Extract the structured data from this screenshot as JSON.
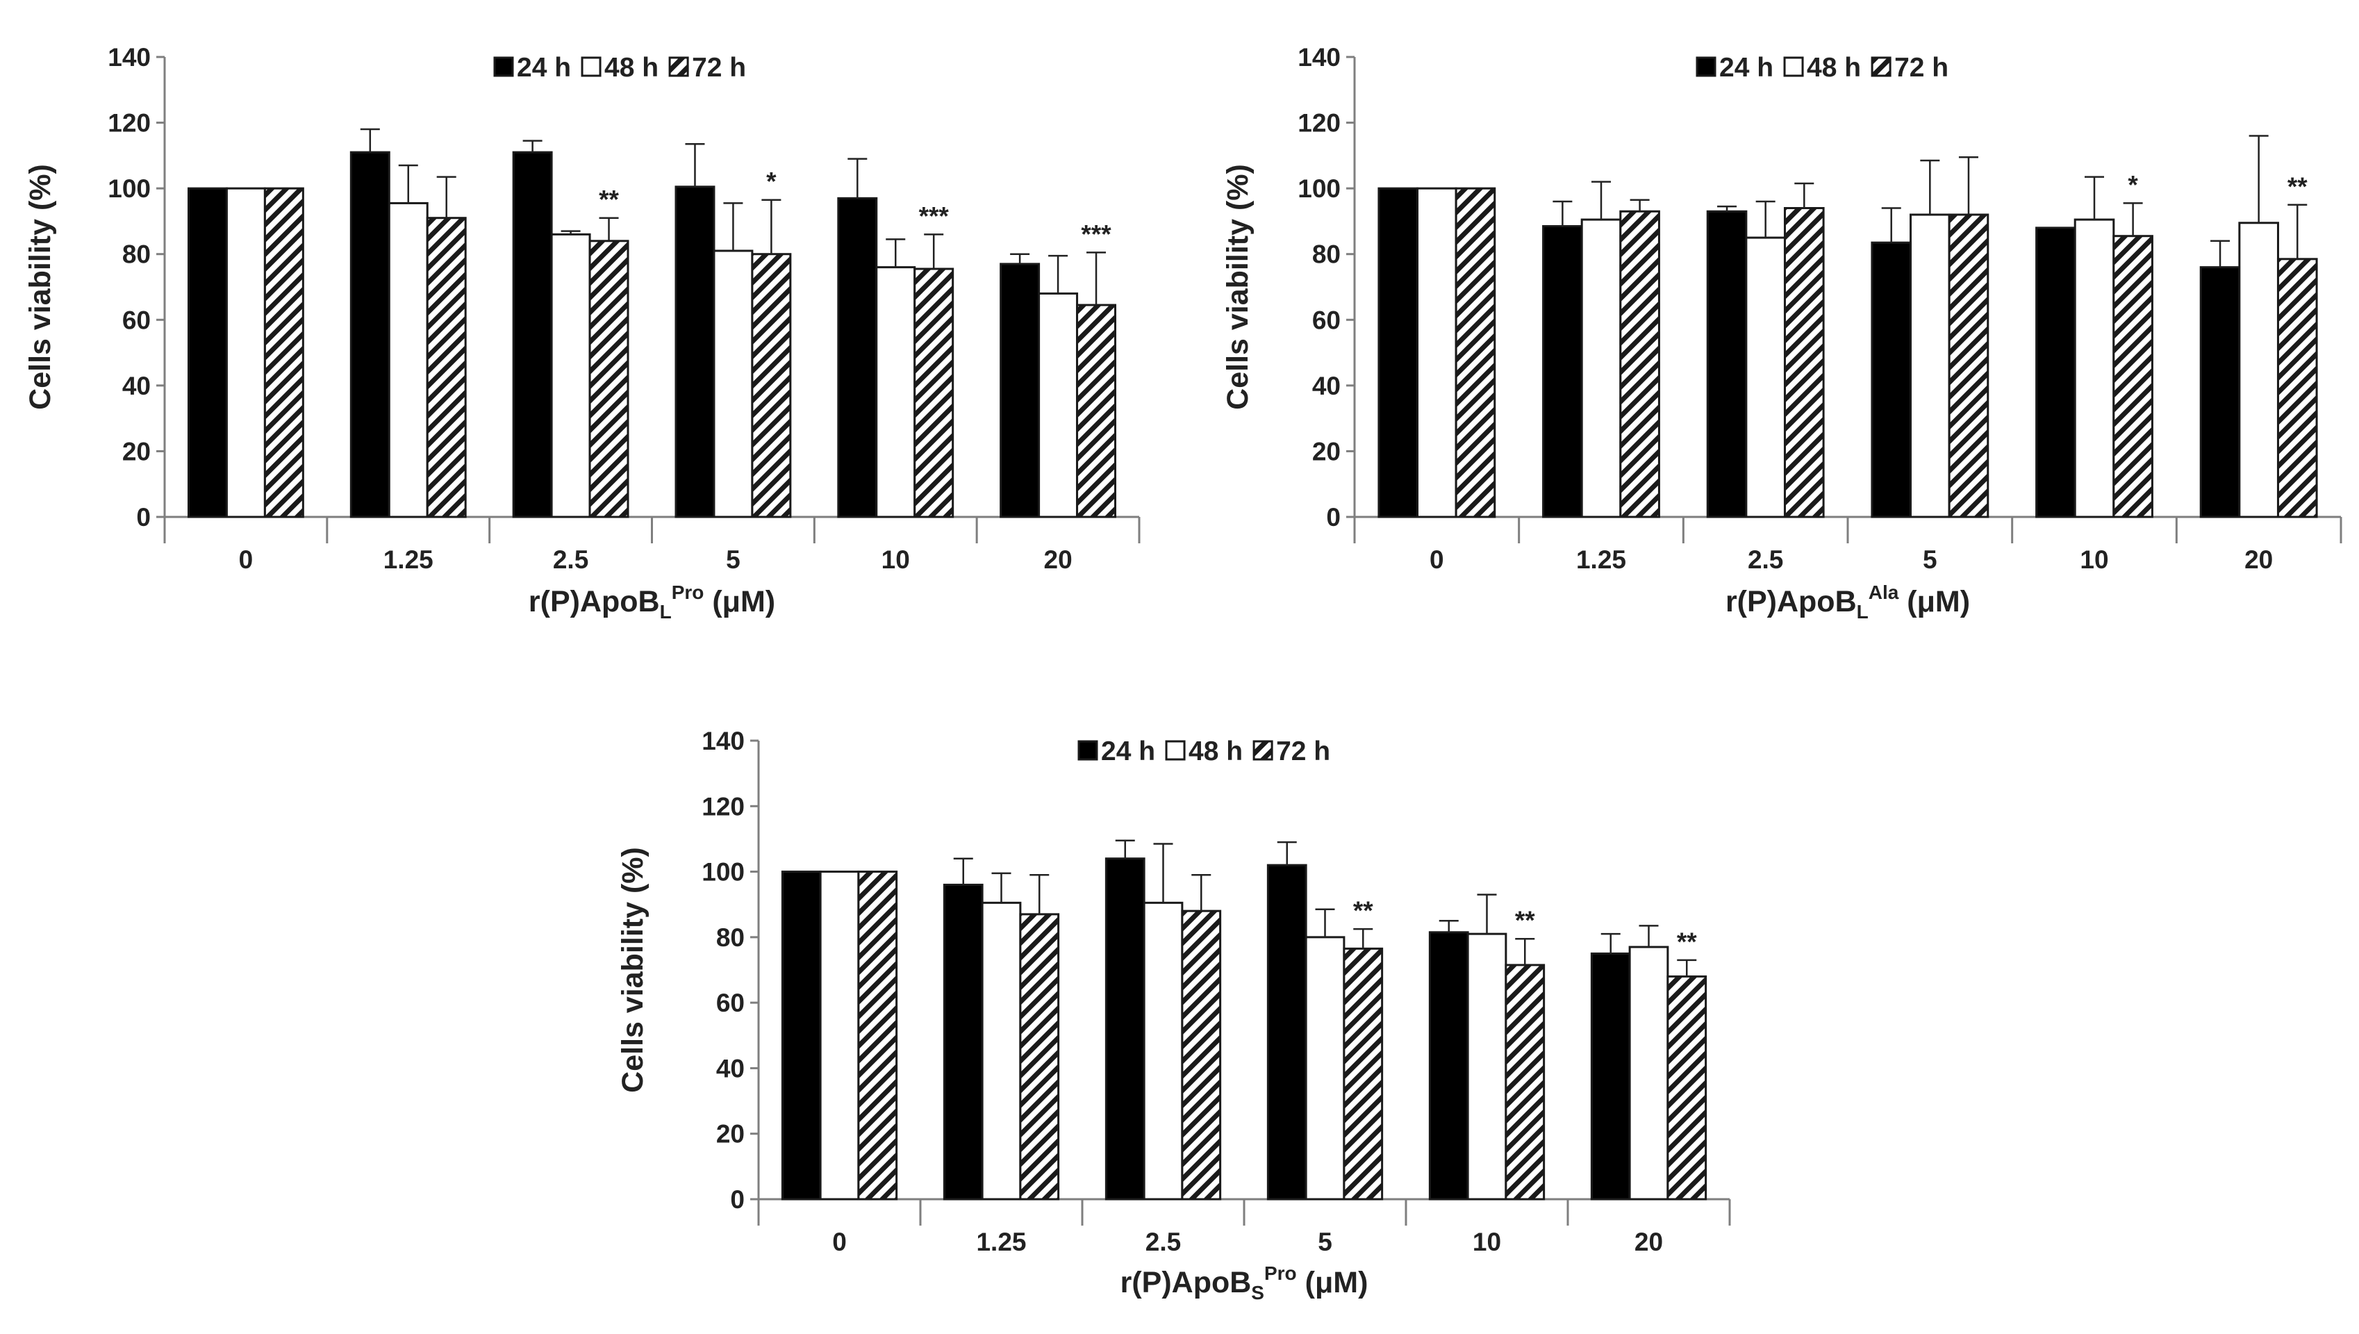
{
  "chart_data": [
    {
      "type": "bar",
      "ylabel": "Cells viability (%)",
      "xlabel": {
        "main": "r(P)ApoB",
        "sub": "L",
        "sup": "Pro",
        "unit": "(μM)"
      },
      "ylim": [
        0,
        140
      ],
      "yticks": [
        0,
        20,
        40,
        60,
        80,
        100,
        120,
        140
      ],
      "categories": [
        "0",
        "1.25",
        "2.5",
        "5",
        "10",
        "20"
      ],
      "legend": "top-center",
      "series": [
        {
          "name": "24 h",
          "style": "solid",
          "values": [
            100,
            111,
            111,
            100.5,
            97,
            77
          ],
          "errors": [
            0,
            7,
            3.5,
            13,
            12,
            3
          ]
        },
        {
          "name": "48 h",
          "style": "white",
          "values": [
            100,
            95.5,
            86,
            81,
            76,
            68
          ],
          "errors": [
            0,
            11.5,
            1,
            14.5,
            8.5,
            11.5
          ]
        },
        {
          "name": "72 h",
          "style": "hatched",
          "values": [
            100,
            91,
            84,
            80,
            75.5,
            64.5
          ],
          "errors": [
            0,
            12.5,
            7,
            16.5,
            10.5,
            16
          ]
        }
      ],
      "annotations": [
        "",
        "",
        "**",
        "*",
        "***",
        "***"
      ]
    },
    {
      "type": "bar",
      "ylabel": "Cells viability (%)",
      "xlabel": {
        "main": "r(P)ApoB",
        "sub": "L",
        "sup": "Ala",
        "unit": "(μM)"
      },
      "ylim": [
        0,
        140
      ],
      "yticks": [
        0,
        20,
        40,
        60,
        80,
        100,
        120,
        140
      ],
      "categories": [
        "0",
        "1.25",
        "2.5",
        "5",
        "10",
        "20"
      ],
      "legend": "top-center",
      "series": [
        {
          "name": "24 h",
          "style": "solid",
          "values": [
            100,
            88.5,
            93,
            83.5,
            88,
            76
          ],
          "errors": [
            0,
            7.5,
            1.5,
            10.5,
            0,
            8
          ]
        },
        {
          "name": "48 h",
          "style": "white",
          "values": [
            100,
            90.5,
            85,
            92,
            90.5,
            89.5
          ],
          "errors": [
            0,
            11.5,
            11,
            16.5,
            13,
            26.5
          ]
        },
        {
          "name": "72 h",
          "style": "hatched",
          "values": [
            100,
            93,
            94,
            92,
            85.5,
            78.5
          ],
          "errors": [
            0,
            3.5,
            7.5,
            17.5,
            10,
            16.5
          ]
        }
      ],
      "annotations": [
        "",
        "",
        "",
        "",
        "*",
        "**"
      ]
    },
    {
      "type": "bar",
      "ylabel": "Cells viability (%)",
      "xlabel": {
        "main": "r(P)ApoB",
        "sub": "S",
        "sup": "Pro",
        "unit": "(μM)"
      },
      "ylim": [
        0,
        140
      ],
      "yticks": [
        0,
        20,
        40,
        60,
        80,
        100,
        120,
        140
      ],
      "categories": [
        "0",
        "1.25",
        "2.5",
        "5",
        "10",
        "20"
      ],
      "legend": "top-center",
      "series": [
        {
          "name": "24 h",
          "style": "solid",
          "values": [
            100,
            96,
            104,
            102,
            81.5,
            75
          ],
          "errors": [
            0,
            8,
            5.5,
            7,
            3.5,
            6
          ]
        },
        {
          "name": "48 h",
          "style": "white",
          "values": [
            100,
            90.5,
            90.5,
            80,
            81,
            77
          ],
          "errors": [
            0,
            9,
            18,
            8.5,
            12,
            6.5
          ]
        },
        {
          "name": "72 h",
          "style": "hatched",
          "values": [
            100,
            87,
            88,
            76.5,
            71.5,
            68
          ],
          "errors": [
            0,
            12,
            11,
            6,
            8,
            5
          ]
        }
      ],
      "annotations": [
        "",
        "",
        "",
        "**",
        "**",
        "**"
      ]
    }
  ]
}
